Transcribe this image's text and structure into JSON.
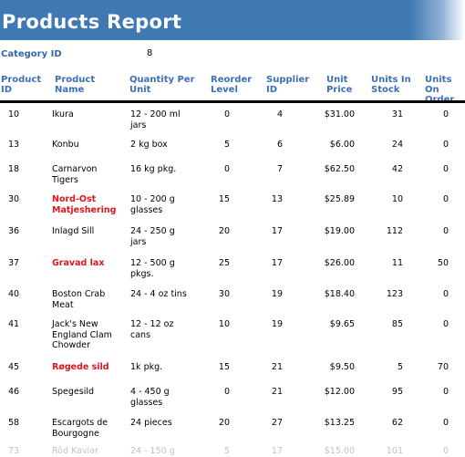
{
  "report": {
    "title": "Products Report"
  },
  "category": {
    "label": "Category ID",
    "value": "8"
  },
  "columns": {
    "product_id": "Product\nID",
    "product_name": "Product\nName",
    "qty": "Quantity Per\nUnit",
    "reorder": "Reorder\nLevel",
    "supplier": "Supplier\nID",
    "price": "Unit\nPrice",
    "instock": "Units In\nStock",
    "onorder": "Units On\nOrder"
  },
  "rows": [
    {
      "id": "10",
      "name": "Ikura",
      "red": false,
      "qty": "12 - 200 ml\njars",
      "reorder": "0",
      "supplier": "4",
      "price": "$31.00",
      "stock": "31",
      "order": "0"
    },
    {
      "id": "13",
      "name": "Konbu",
      "red": false,
      "qty": "2 kg box",
      "reorder": "5",
      "supplier": "6",
      "price": "$6.00",
      "stock": "24",
      "order": "0"
    },
    {
      "id": "18",
      "name": "Carnarvon\nTigers",
      "red": false,
      "qty": "16 kg pkg.",
      "reorder": "0",
      "supplier": "7",
      "price": "$62.50",
      "stock": "42",
      "order": "0"
    },
    {
      "id": "30",
      "name": "Nord-Ost\nMatjeshering",
      "red": true,
      "qty": "10 - 200 g\nglasses",
      "reorder": "15",
      "supplier": "13",
      "price": "$25.89",
      "stock": "10",
      "order": "0"
    },
    {
      "id": "36",
      "name": "Inlagd Sill",
      "red": false,
      "qty": "24 - 250 g\njars",
      "reorder": "20",
      "supplier": "17",
      "price": "$19.00",
      "stock": "112",
      "order": "0"
    },
    {
      "id": "37",
      "name": "Gravad lax",
      "red": true,
      "qty": "12 - 500 g\npkgs.",
      "reorder": "25",
      "supplier": "17",
      "price": "$26.00",
      "stock": "11",
      "order": "50"
    },
    {
      "id": "40",
      "name": "Boston Crab\nMeat",
      "red": false,
      "qty": "24 - 4 oz tins",
      "reorder": "30",
      "supplier": "19",
      "price": "$18.40",
      "stock": "123",
      "order": "0"
    },
    {
      "id": "41",
      "name": "Jack's New\nEngland Clam\nChowder",
      "red": false,
      "qty": "12 - 12 oz\ncans",
      "reorder": "10",
      "supplier": "19",
      "price": "$9.65",
      "stock": "85",
      "order": "0"
    },
    {
      "id": "45",
      "name": "Røgede sild",
      "red": true,
      "qty": "1k pkg.",
      "reorder": "15",
      "supplier": "21",
      "price": "$9.50",
      "stock": "5",
      "order": "70"
    },
    {
      "id": "46",
      "name": "Spegesild",
      "red": false,
      "qty": "4 - 450 g\nglasses",
      "reorder": "0",
      "supplier": "21",
      "price": "$12.00",
      "stock": "95",
      "order": "0"
    },
    {
      "id": "58",
      "name": "Escargots de\nBourgogne",
      "red": false,
      "qty": "24 pieces",
      "reorder": "20",
      "supplier": "27",
      "price": "$13.25",
      "stock": "62",
      "order": "0"
    },
    {
      "id": "73",
      "name": "Röd Kaviar",
      "red": false,
      "qty": "24 - 150 g",
      "reorder": "5",
      "supplier": "17",
      "price": "$15.00",
      "stock": "101",
      "order": "0"
    }
  ]
}
